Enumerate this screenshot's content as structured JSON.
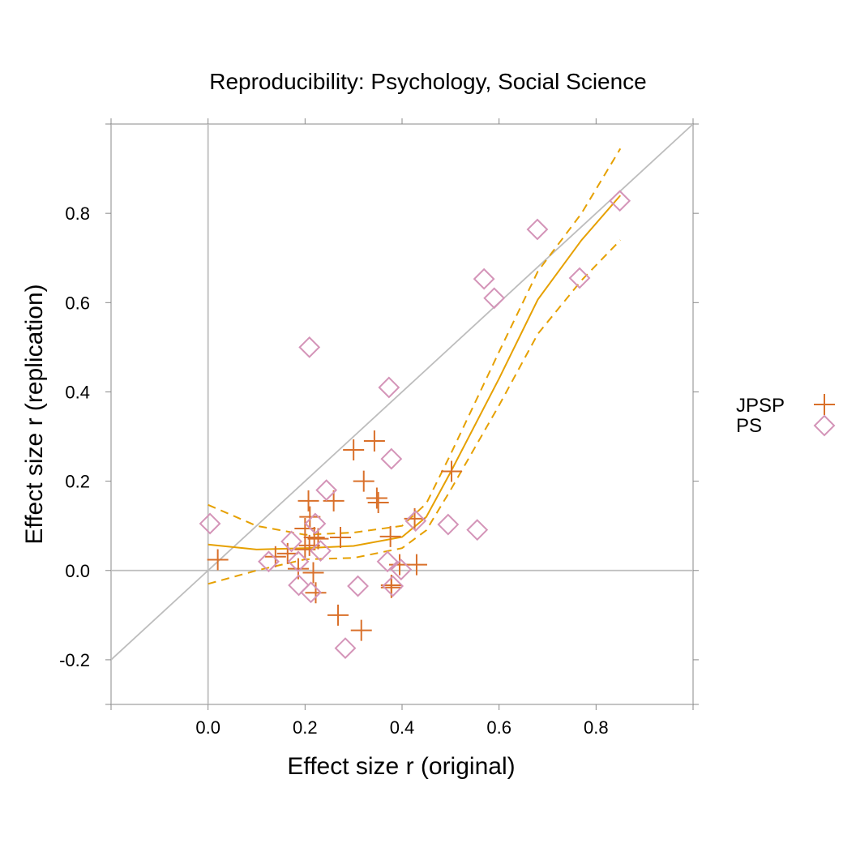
{
  "chart_data": {
    "type": "scatter",
    "title": "Reproducibility: Psychology, Social Science",
    "xlabel": "Effect size r (original)",
    "ylabel": "Effect size r (replication)",
    "xlim": [
      -0.2,
      1.0
    ],
    "ylim": [
      -0.3,
      1.0
    ],
    "xticks": [
      0.0,
      0.2,
      0.4,
      0.6,
      0.8
    ],
    "xtick_labels": [
      "0.0",
      "0.2",
      "0.4",
      "0.6",
      "0.8"
    ],
    "yticks": [
      -0.2,
      0.0,
      0.2,
      0.4,
      0.6,
      0.8
    ],
    "ytick_labels": [
      "-0.2",
      "0.0",
      "0.2",
      "0.4",
      "0.6",
      "0.8"
    ],
    "grid": false,
    "reference_lines": {
      "identity": true,
      "x_zero": true,
      "y_zero": true,
      "color": "#bdbdbd"
    },
    "legend_placement": "right",
    "series": [
      {
        "name": "JPSP",
        "marker": "plus",
        "color": "#d9702a",
        "points": [
          [
            0.02,
            0.024
          ],
          [
            0.3,
            0.27
          ],
          [
            0.343,
            0.29
          ],
          [
            0.321,
            0.2
          ],
          [
            0.207,
            0.156
          ],
          [
            0.259,
            0.156
          ],
          [
            0.348,
            0.162
          ],
          [
            0.351,
            0.152
          ],
          [
            0.21,
            0.12
          ],
          [
            0.2,
            0.094
          ],
          [
            0.219,
            0.074
          ],
          [
            0.227,
            0.071
          ],
          [
            0.273,
            0.074
          ],
          [
            0.209,
            0.056
          ],
          [
            0.139,
            0.031
          ],
          [
            0.164,
            0.038
          ],
          [
            0.186,
            0.004
          ],
          [
            0.217,
            -0.005
          ],
          [
            0.222,
            -0.05
          ],
          [
            0.268,
            -0.1
          ],
          [
            0.316,
            -0.134
          ],
          [
            0.376,
            0.076
          ],
          [
            0.395,
            0.013
          ],
          [
            0.43,
            0.013
          ],
          [
            0.378,
            -0.033
          ],
          [
            0.378,
            -0.038
          ],
          [
            0.426,
            0.116
          ],
          [
            0.502,
            0.222
          ],
          [
            0.2,
            0.047
          ]
        ]
      },
      {
        "name": "PS",
        "marker": "diamond",
        "color": "#d494b8",
        "points": [
          [
            0.004,
            0.105
          ],
          [
            0.378,
            0.25
          ],
          [
            0.244,
            0.18
          ],
          [
            0.221,
            0.105
          ],
          [
            0.172,
            0.065
          ],
          [
            0.232,
            0.044
          ],
          [
            0.125,
            0.02
          ],
          [
            0.186,
            0.02
          ],
          [
            0.37,
            0.02
          ],
          [
            0.398,
            0.002
          ],
          [
            0.187,
            -0.033
          ],
          [
            0.212,
            -0.049
          ],
          [
            0.309,
            -0.035
          ],
          [
            0.381,
            -0.035
          ],
          [
            0.283,
            -0.174
          ],
          [
            0.428,
            0.111
          ],
          [
            0.209,
            0.5
          ],
          [
            0.373,
            0.41
          ],
          [
            0.495,
            0.103
          ],
          [
            0.555,
            0.091
          ],
          [
            0.569,
            0.653
          ],
          [
            0.59,
            0.61
          ],
          [
            0.679,
            0.764
          ],
          [
            0.766,
            0.655
          ],
          [
            0.849,
            0.828
          ]
        ]
      }
    ],
    "smooth": {
      "color": "#e6a000",
      "fit": [
        [
          0.0,
          0.058
        ],
        [
          0.1,
          0.047
        ],
        [
          0.2,
          0.05
        ],
        [
          0.3,
          0.055
        ],
        [
          0.4,
          0.075
        ],
        [
          0.45,
          0.12
        ],
        [
          0.5,
          0.22
        ],
        [
          0.6,
          0.43
        ],
        [
          0.68,
          0.607
        ],
        [
          0.77,
          0.74
        ],
        [
          0.85,
          0.84
        ]
      ],
      "upper": [
        [
          0.0,
          0.147
        ],
        [
          0.1,
          0.1
        ],
        [
          0.2,
          0.08
        ],
        [
          0.3,
          0.085
        ],
        [
          0.4,
          0.1
        ],
        [
          0.45,
          0.15
        ],
        [
          0.5,
          0.26
        ],
        [
          0.6,
          0.49
        ],
        [
          0.68,
          0.67
        ],
        [
          0.77,
          0.8
        ],
        [
          0.85,
          0.945
        ]
      ],
      "lower": [
        [
          0.0,
          -0.03
        ],
        [
          0.1,
          0.0
        ],
        [
          0.2,
          0.025
        ],
        [
          0.3,
          0.028
        ],
        [
          0.4,
          0.05
        ],
        [
          0.45,
          0.09
        ],
        [
          0.5,
          0.18
        ],
        [
          0.6,
          0.37
        ],
        [
          0.68,
          0.53
        ],
        [
          0.77,
          0.65
        ],
        [
          0.85,
          0.74
        ]
      ]
    }
  }
}
